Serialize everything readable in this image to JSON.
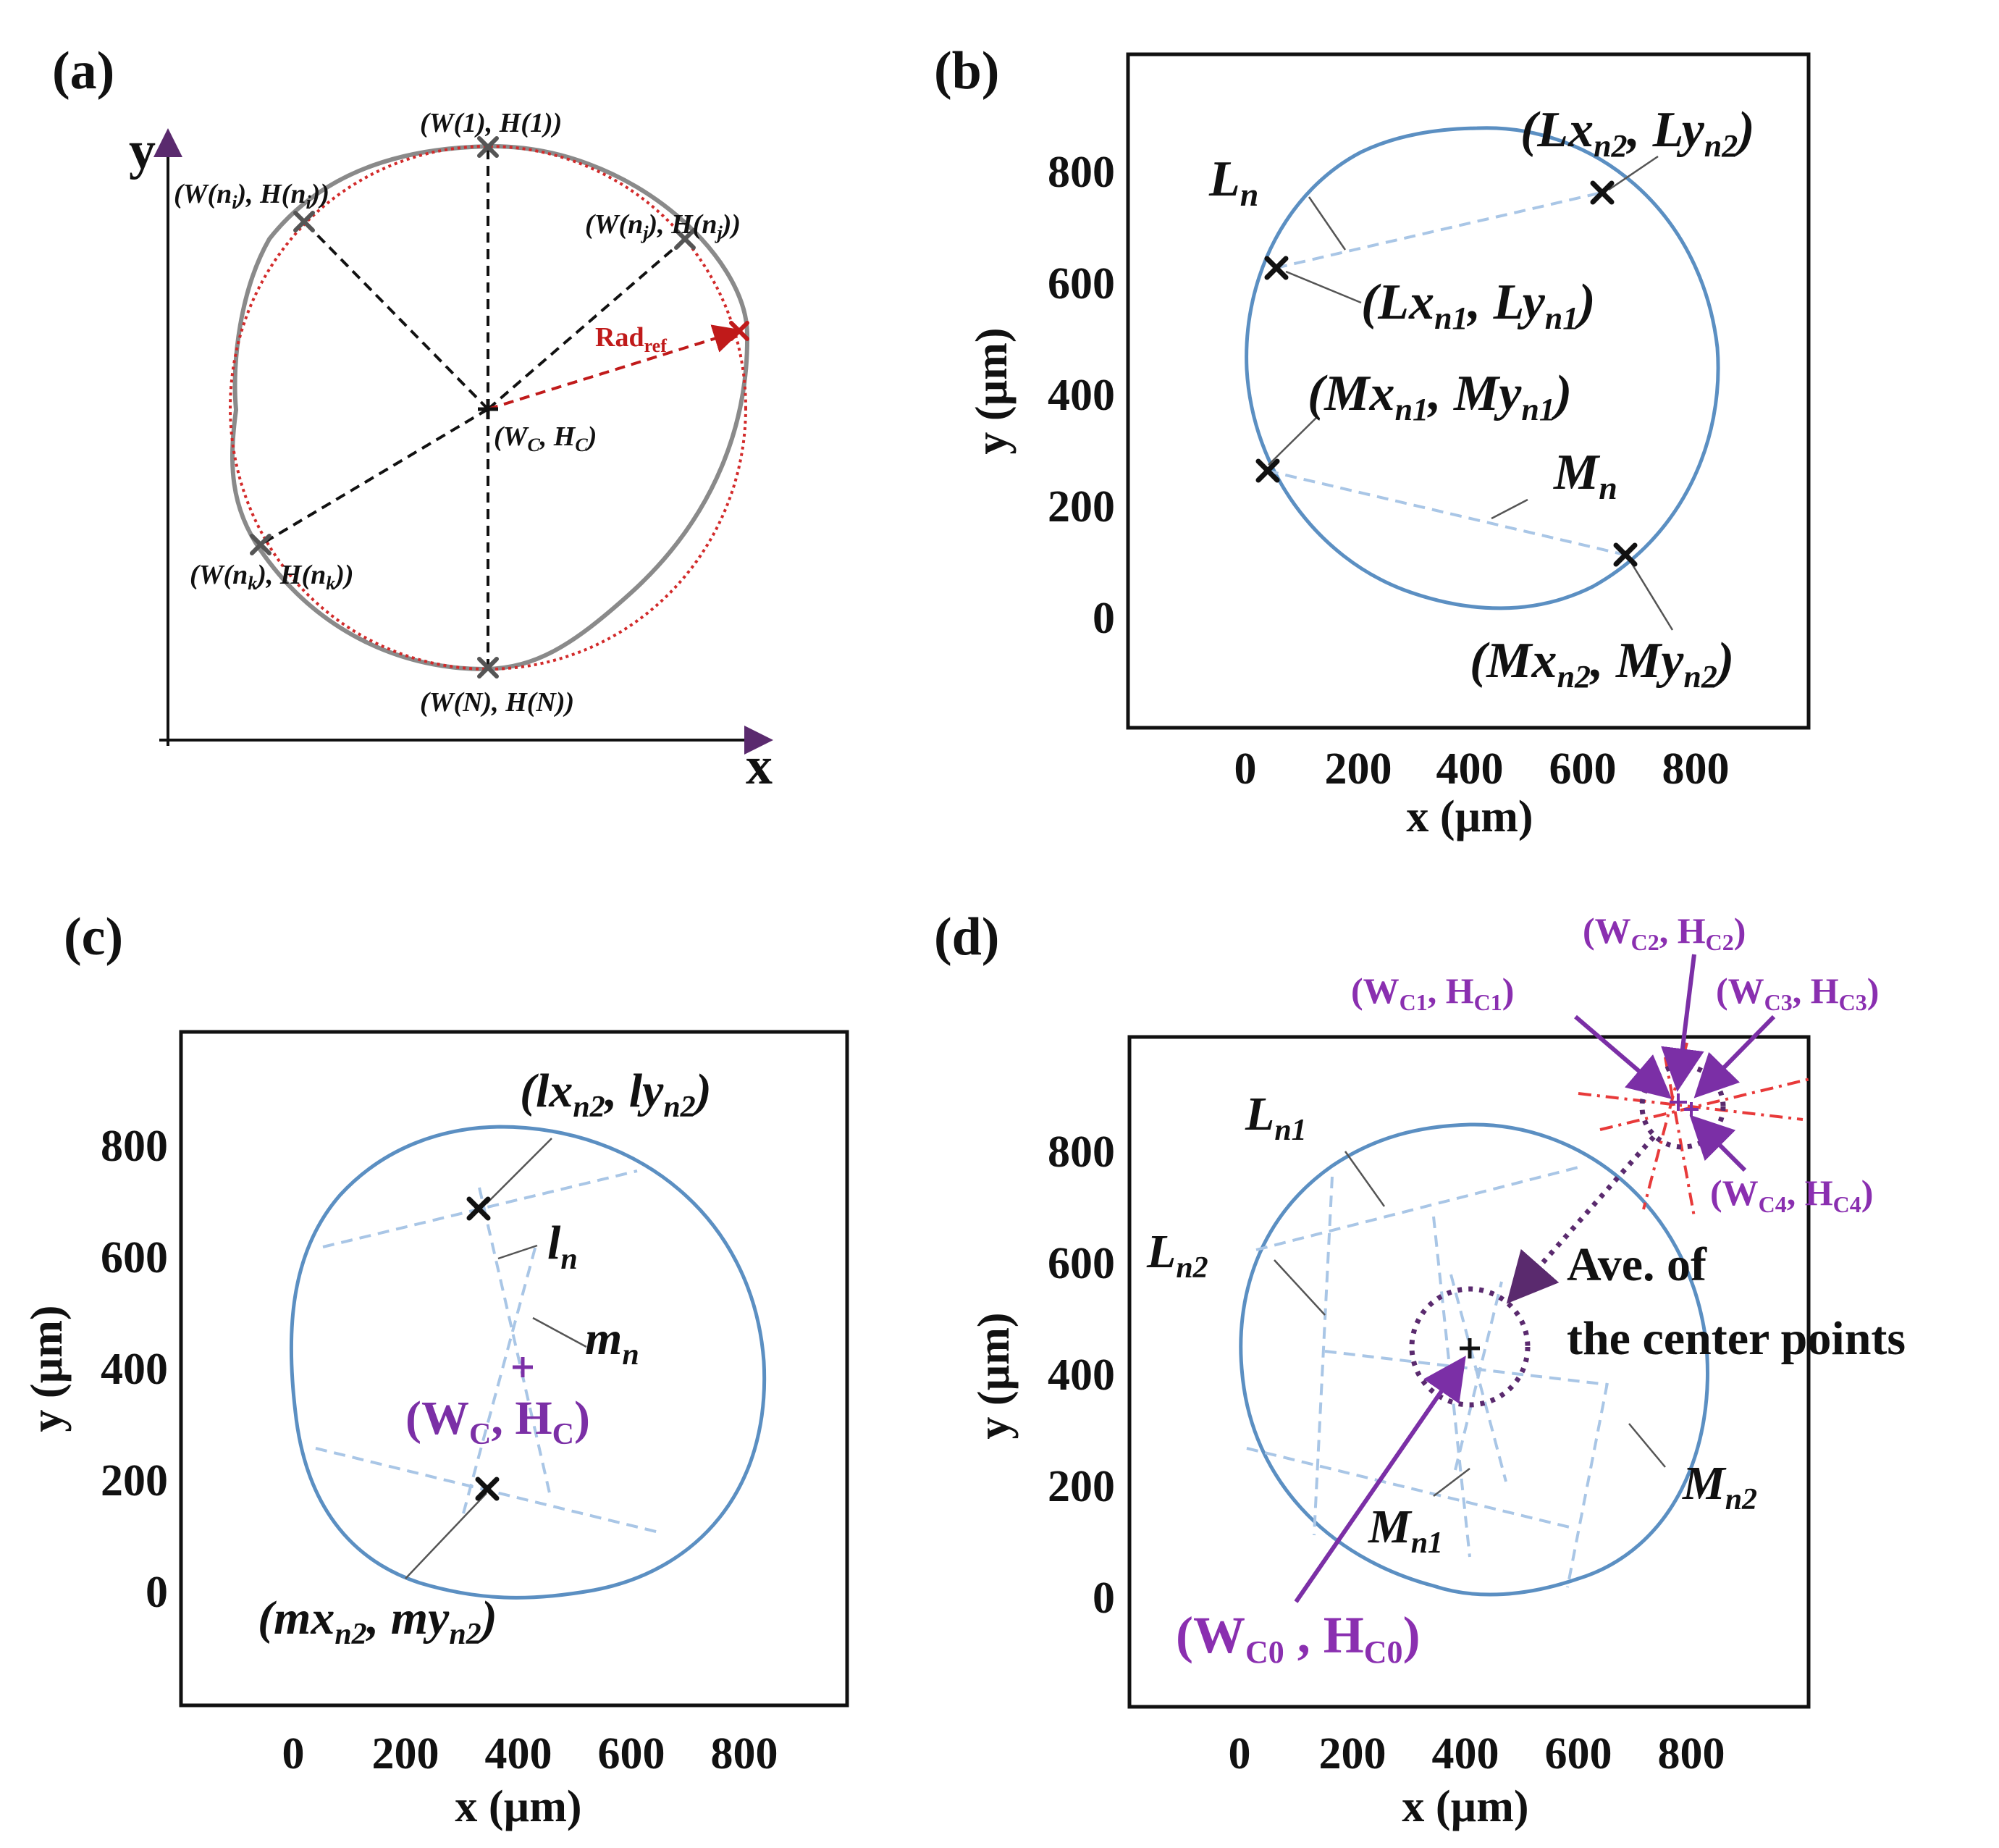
{
  "figure": {
    "panels": {
      "a": {
        "label": "(a)",
        "axis_x": "x",
        "axis_y": "y",
        "points": {
          "top": "(W(1), H(1))",
          "ni_a": "(W(n",
          "ni_b": "i",
          "ni_c": "), H(n",
          "ni_d": "i",
          "ni_e": "))",
          "nj_a": "(W(n",
          "nj_b": "j",
          "nj_c": "), H(n",
          "nj_d": "j",
          "nj_e": "))",
          "nk_a": "(W(n",
          "nk_b": "k",
          "nk_c": "), H(n",
          "nk_d": "k",
          "nk_e": "))",
          "bottom": "(W(N), H(N))",
          "center_a": "(W",
          "center_b": "C",
          "center_c": ", H",
          "center_d": "C",
          "center_e": ")"
        },
        "rad_ref_main": "Rad",
        "rad_ref_sub": "ref",
        "colors": {
          "reference_circle": "#cc2222",
          "contour": "#888888",
          "marker": "#555555"
        }
      },
      "b": {
        "label": "(b)",
        "xlabel": "x (µm)",
        "ylabel": "y (µm)",
        "L_main": "L",
        "L_sub": "n",
        "M_main": "M",
        "M_sub": "n",
        "Ln2_a": "(Lx",
        "Ln2_b": "n2",
        "Ln2_c": ", Ly",
        "Ln2_d": "n2",
        "Ln2_e": ")",
        "Ln1_a": "(Lx",
        "Ln1_b": "n1",
        "Ln1_c": ", Ly",
        "Ln1_d": "n1",
        "Ln1_e": ")",
        "Mn1_a": "(Mx",
        "Mn1_b": "n1",
        "Mn1_c": ", My",
        "Mn1_d": "n1",
        "Mn1_e": ")",
        "Mn2_a": "(Mx",
        "Mn2_b": "n2",
        "Mn2_c": ", My",
        "Mn2_d": "n2",
        "Mn2_e": ")"
      },
      "c": {
        "label": "(c)",
        "xlabel": "x (µm)",
        "ylabel": "y (µm)",
        "l_main": "l",
        "l_sub": "n",
        "m_main": "m",
        "m_sub": "n",
        "lx_a": "(lx",
        "lx_b": "n2",
        "lx_c": ", ly",
        "lx_d": "n2",
        "lx_e": ")",
        "mx_a": "(mx",
        "mx_b": "n2",
        "mx_c": ", my",
        "mx_d": "n2",
        "mx_e": ")",
        "wc_a": "(W",
        "wc_b": "C",
        "wc_c": ", H",
        "wc_d": "C",
        "wc_e": ")"
      },
      "d": {
        "label": "(d)",
        "xlabel": "x (µm)",
        "ylabel": "y (µm)",
        "Ln1_main": "L",
        "Ln1_sub": "n1",
        "Ln2_main": "L",
        "Ln2_sub": "n2",
        "Mn1_main": "M",
        "Mn1_sub": "n1",
        "Mn2_main": "M",
        "Mn2_sub": "n2",
        "ave_line1": "Ave. of",
        "ave_line2": "the center points",
        "c1_a": "(W",
        "c1_b": "C1",
        "c1_c": ", H",
        "c1_d": "C1",
        "c1_e": ")",
        "c2_a": "(W",
        "c2_b": "C2",
        "c2_c": ", H",
        "c2_d": "C2",
        "c2_e": ")",
        "c3_a": "(W",
        "c3_b": "C3",
        "c3_c": ", H",
        "c3_d": "C3",
        "c3_e": ")",
        "c4_a": "(W",
        "c4_b": "C4",
        "c4_c": ", H",
        "c4_d": "C4",
        "c4_e": ")",
        "c0_a": "(W",
        "c0_b": "C0",
        "c0_c": " , H",
        "c0_d": "C0",
        "c0_e": ")"
      }
    },
    "axes": {
      "x_range_um": [
        -200,
        1000
      ],
      "y_range_um": [
        -200,
        1000
      ],
      "x_ticks": [
        "0",
        "200",
        "400",
        "600",
        "800"
      ],
      "y_ticks": [
        "800",
        "600",
        "400",
        "200",
        "0"
      ]
    },
    "colors": {
      "contour": "#5b8fc2",
      "chord": "#a9c6e6",
      "purple": "#7b2fa6",
      "red_spread": "#e83a3a",
      "frame": "#111111"
    }
  }
}
